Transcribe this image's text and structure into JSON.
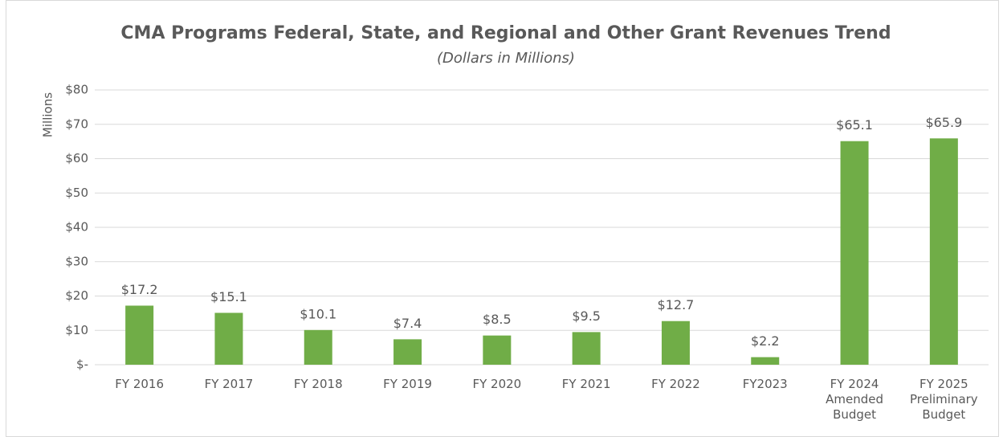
{
  "chart_data": {
    "type": "bar",
    "title": "CMA Programs Federal, State, and Regional and Other Grant Revenues Trend",
    "subtitle": "(Dollars in Millions)",
    "y_label": "Millions",
    "categories": [
      "FY 2016",
      "FY 2017",
      "FY 2018",
      "FY 2019",
      "FY 2020",
      "FY 2021",
      "FY 2022",
      "FY2023",
      "FY 2024\nAmended\nBudget",
      "FY 2025\nPreliminary\nBudget"
    ],
    "values": [
      17.2,
      15.1,
      10.1,
      7.4,
      8.5,
      9.5,
      12.7,
      2.2,
      65.1,
      65.9
    ],
    "value_labels": [
      "$17.2",
      "$15.1",
      "$10.1",
      "$7.4",
      "$8.5",
      "$9.5",
      "$12.7",
      "$2.2",
      "$65.1",
      "$65.9"
    ],
    "color": "#70ad47",
    "ylim": [
      0,
      80
    ],
    "yticks": [
      {
        "value": 0,
        "label": "$-"
      },
      {
        "value": 10,
        "label": "$10"
      },
      {
        "value": 20,
        "label": "$20"
      },
      {
        "value": 30,
        "label": "$30"
      },
      {
        "value": 40,
        "label": "$40"
      },
      {
        "value": 50,
        "label": "$50"
      },
      {
        "value": 60,
        "label": "$60"
      },
      {
        "value": 70,
        "label": "$70"
      },
      {
        "value": 80,
        "label": "$80"
      }
    ],
    "grid": true
  }
}
